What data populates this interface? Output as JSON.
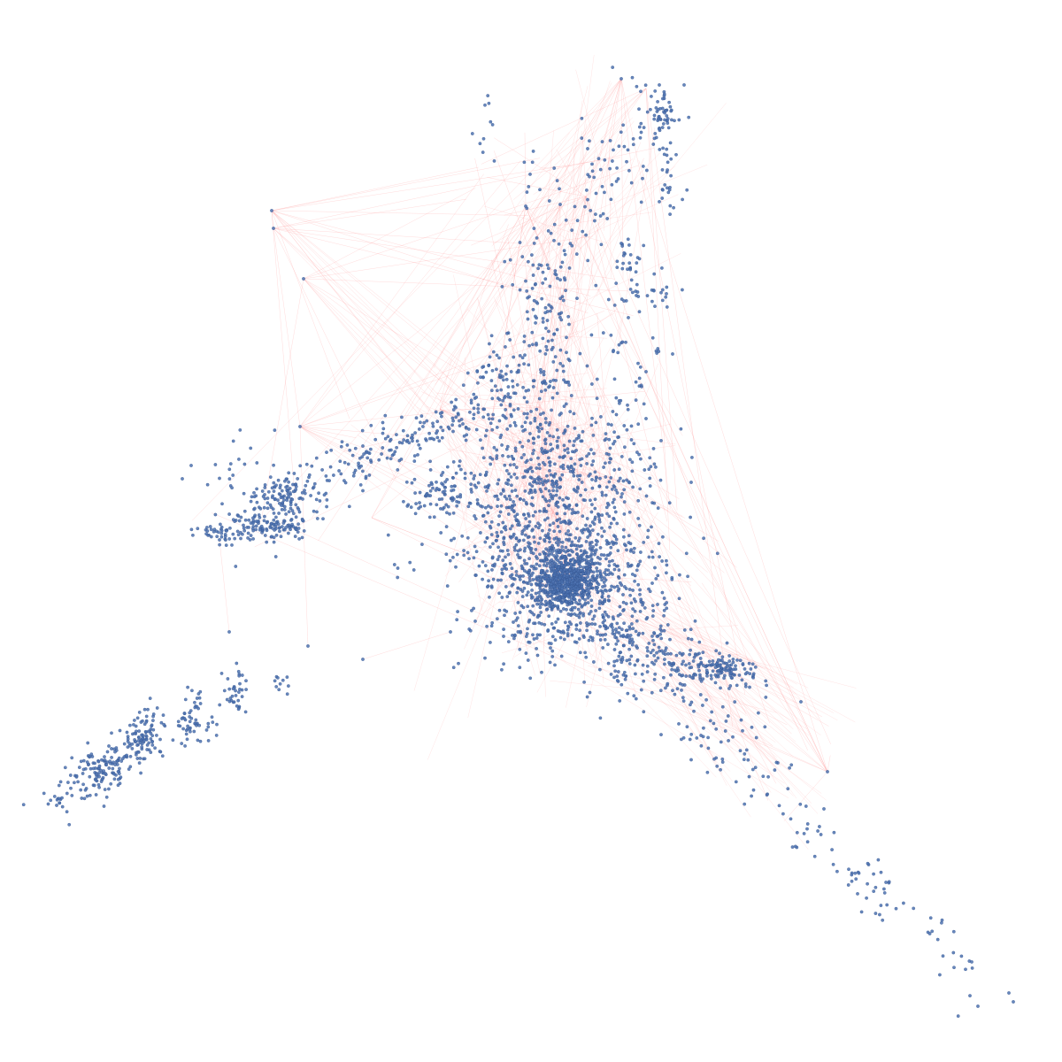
{
  "graph": {
    "type": "network-graph",
    "title": "",
    "node_color": "#4c72b0",
    "edge_color": "#ff9999",
    "background": "#ffffff",
    "approx_node_count": 4000,
    "labels_visible": false
  }
}
